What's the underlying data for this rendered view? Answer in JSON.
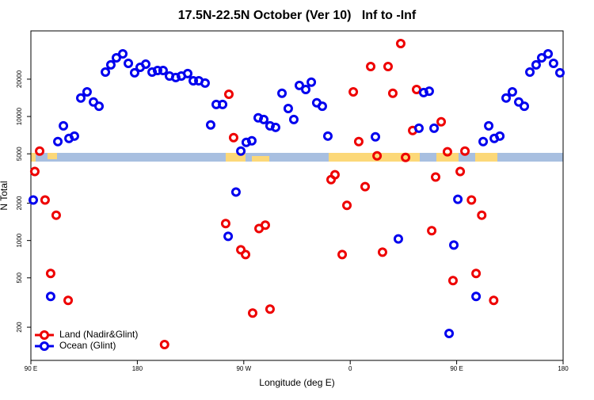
{
  "chart_data": {
    "type": "scatter",
    "title": "17.5N-22.5N October (Ver 10)   Inf to -Inf",
    "x_label": "Longitude (deg E)",
    "y_label": "N Total",
    "xlim": [
      90,
      540
    ],
    "xticks": [
      {
        "value": 90,
        "label": "90 E"
      },
      180,
      {
        "value": 270,
        "label": "90 W"
      },
      {
        "value": 360,
        "label": "0"
      },
      {
        "value": 450,
        "label": "90 E"
      },
      {
        "value": 540,
        "label": "180"
      }
    ],
    "ylim": [
      108,
      49000
    ],
    "log_y": true,
    "yticks": [
      200,
      500,
      1000,
      2000,
      5000,
      10000,
      20000
    ],
    "legend": "lower left",
    "series": [
      {
        "name": "Land (Nadir&Glint)",
        "color": "#ee0000",
        "x": [
          93.3,
          97.4,
          102,
          106.7,
          111.4,
          121.5,
          203,
          254.7,
          257.4,
          261.4,
          267.5,
          271.5,
          277.5,
          282.9,
          288.2,
          292.2,
          343.8,
          347.1,
          353.2,
          357.2,
          362.6,
          367.2,
          372.6,
          377.3,
          382.7,
          387.3,
          392,
          396,
          402.7,
          406.8,
          412.8,
          416.1,
          428.9,
          432.2,
          436.9,
          442.2,
          446.9,
          453,
          457,
          462.5,
          466.4,
          471.2,
          481.3
        ],
        "values": [
          3600,
          5260,
          2120,
          542,
          1600,
          329,
          145,
          1370,
          15100,
          6760,
          842,
          771,
          260,
          1250,
          1330,
          280,
          3100,
          3390,
          771,
          1920,
          15800,
          6280,
          2720,
          25300,
          4820,
          805,
          25300,
          15400,
          38700,
          4680,
          7710,
          16500,
          1200,
          3250,
          9060,
          5190,
          475,
          3600,
          5260,
          2120,
          542,
          1600,
          329
        ]
      },
      {
        "name": "Ocean (Glint)",
        "color": "#0000ee",
        "x": [
          92,
          106.7,
          112.8,
          117.5,
          122.2,
          126.8,
          132.2,
          137.5,
          142.9,
          147.6,
          153,
          157.6,
          162.3,
          167.7,
          172.4,
          177.7,
          182.4,
          187.1,
          192.5,
          197.1,
          201.8,
          207.2,
          212.5,
          217.2,
          222.6,
          227.3,
          232,
          237.3,
          242,
          246.7,
          252.1,
          256.8,
          263.4,
          267.5,
          272.1,
          276.8,
          282.2,
          286.9,
          292.2,
          296.9,
          302.3,
          307.6,
          312.3,
          317,
          322.4,
          327.1,
          331.7,
          336.4,
          341.1,
          381.3,
          400.7,
          418.1,
          422.1,
          426.8,
          430.9,
          443.6,
          447.6,
          451,
          466.4,
          472.4,
          477.1,
          481.8,
          486.5,
          491.8,
          497.1,
          502.5,
          507.2,
          511.9,
          517.2,
          521.9,
          527.3,
          531.9,
          537.3
        ],
        "values": [
          2120,
          354,
          6280,
          8410,
          6660,
          6950,
          14100,
          15800,
          13100,
          12100,
          22800,
          26100,
          29700,
          32000,
          26800,
          22500,
          24900,
          26400,
          22800,
          23500,
          23500,
          21200,
          20600,
          21200,
          22200,
          19400,
          19400,
          18600,
          8550,
          12500,
          12500,
          1080,
          2460,
          5260,
          6180,
          6370,
          9750,
          9460,
          8410,
          8170,
          15400,
          11600,
          9460,
          17800,
          16500,
          18900,
          12900,
          12100,
          6950,
          6850,
          1030,
          8050,
          15600,
          16000,
          8050,
          178,
          919,
          2150,
          354,
          6280,
          8410,
          6660,
          6950,
          14100,
          15800,
          13100,
          12100,
          22800,
          26100,
          29700,
          32000,
          26800,
          22500
        ]
      }
    ]
  }
}
